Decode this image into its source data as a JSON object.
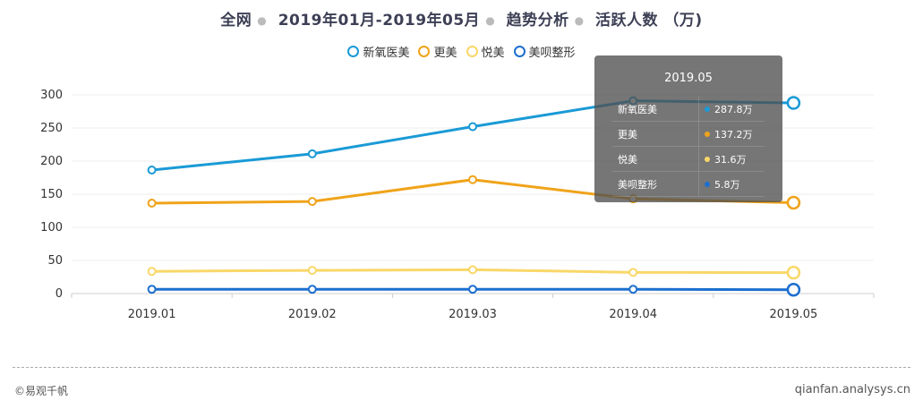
{
  "title": {
    "part1": "全网",
    "part2": "2019年01月-2019年05月",
    "part3": "趋势分析",
    "part4": "活跃人数 （万)"
  },
  "tooltip": {
    "title": "2019.05",
    "rows": [
      {
        "name": "新氧医美",
        "value": "287.8万",
        "color": "#1a9ad6"
      },
      {
        "name": "更美",
        "value": "137.2万",
        "color": "#f0a31a"
      },
      {
        "name": "悦美",
        "value": "31.6万",
        "color": "#f9d768"
      },
      {
        "name": "美呗整形",
        "value": "5.8万",
        "color": "#1c6fcf"
      }
    ]
  },
  "footer": {
    "copyright": "©易观千帆",
    "site": "qianfan.analysys.cn"
  },
  "chart_data": {
    "type": "line",
    "categories": [
      "2019.01",
      "2019.02",
      "2019.03",
      "2019.04",
      "2019.05"
    ],
    "ylim": [
      0,
      300
    ],
    "yticks": [
      0,
      50,
      100,
      150,
      200,
      250,
      300
    ],
    "series": [
      {
        "name": "新氧医美",
        "color": "#1a9ad6",
        "values": [
          186.5,
          211,
          252,
          291,
          287.8
        ]
      },
      {
        "name": "更美",
        "color": "#f0a31a",
        "values": [
          136.5,
          139,
          172,
          143,
          137.2
        ]
      },
      {
        "name": "悦美",
        "color": "#f9d768",
        "values": [
          33.5,
          35,
          36,
          32,
          31.6
        ]
      },
      {
        "name": "美呗整形",
        "color": "#1c6fcf",
        "values": [
          6.5,
          6.5,
          6.5,
          6.5,
          5.8
        ]
      }
    ],
    "legend_position": "top-center",
    "grid": true
  }
}
